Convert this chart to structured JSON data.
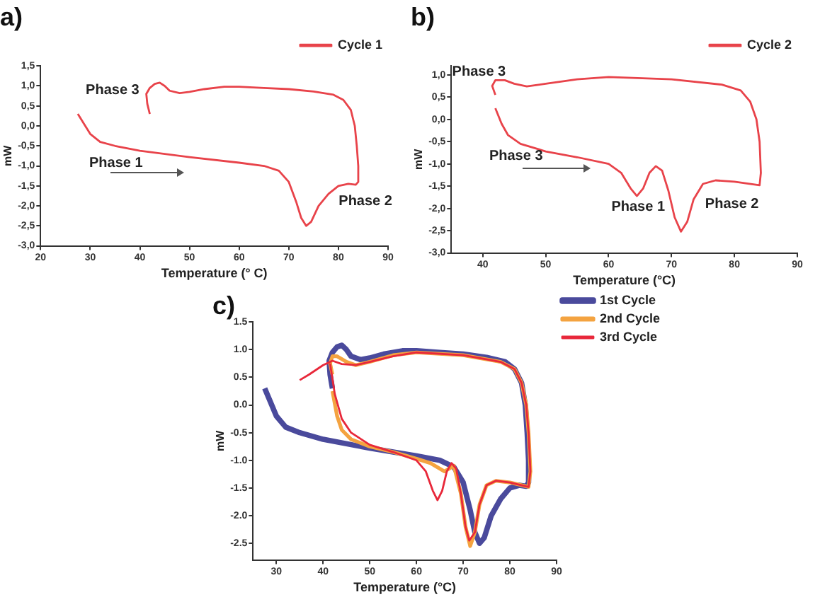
{
  "chart_data": [
    {
      "type": "line",
      "title": "a)",
      "xlabel": "Temperature (° C)",
      "ylabel": "mW",
      "xlim": [
        20,
        90
      ],
      "xticks": [
        20,
        30,
        40,
        50,
        60,
        70,
        80,
        90
      ],
      "ylim": [
        -3,
        1.5
      ],
      "yticks": [
        {
          "value": 1.5,
          "label": "1,5"
        },
        {
          "value": 1,
          "label": "1,0"
        },
        {
          "value": 0.5,
          "label": "0,5"
        },
        {
          "value": 0,
          "label": "0,0"
        },
        {
          "value": -0.5,
          "label": "-0,5"
        },
        {
          "value": -1,
          "label": "-1,0"
        },
        {
          "value": -1.5,
          "label": "-1,5"
        },
        {
          "value": -2,
          "label": "-2,0"
        },
        {
          "value": -2.5,
          "label": "-2,5"
        },
        {
          "value": -3,
          "label": "-3,0"
        }
      ],
      "grid": false,
      "legend": "top right",
      "marker": "none",
      "line_style": "solid",
      "annotations": [
        "Phase 3",
        "Phase 1",
        "Phase 2"
      ],
      "series": [
        {
          "name": "Cycle 1",
          "color": "#e8434a",
          "x": [
            27.5,
            29,
            30,
            32,
            35,
            40,
            50,
            60,
            65,
            68,
            70,
            71.5,
            72.5,
            73.5,
            74.5,
            76,
            78,
            80,
            82,
            83.5,
            84,
            84,
            83.7,
            83.3,
            82.5,
            81,
            79,
            75,
            70,
            65,
            60,
            57,
            53,
            50,
            48,
            46,
            45,
            44,
            43,
            42,
            41.3,
            41.5,
            42
          ],
          "values": [
            0.3,
            0,
            -0.2,
            -0.4,
            -0.5,
            -0.62,
            -0.78,
            -0.92,
            -1,
            -1.12,
            -1.4,
            -1.9,
            -2.3,
            -2.5,
            -2.4,
            -2,
            -1.7,
            -1.5,
            -1.45,
            -1.47,
            -1.4,
            -1,
            -0.5,
            0,
            0.4,
            0.65,
            0.78,
            0.86,
            0.92,
            0.95,
            0.98,
            0.98,
            0.92,
            0.85,
            0.82,
            0.88,
            1,
            1.08,
            1.05,
            0.95,
            0.8,
            0.55,
            0.3
          ]
        }
      ]
    },
    {
      "type": "line",
      "title": "b)",
      "xlabel": "Temperature (°C)",
      "ylabel": "mW",
      "xlim": [
        35,
        90
      ],
      "xticks": [
        40,
        50,
        60,
        70,
        80,
        90
      ],
      "ylim": [
        -3,
        1.2
      ],
      "yticks": [
        {
          "value": 1,
          "label": "1,0"
        },
        {
          "value": 0.5,
          "label": "0,5"
        },
        {
          "value": 0,
          "label": "0,0"
        },
        {
          "value": -0.5,
          "label": "-0,5"
        },
        {
          "value": -1,
          "label": "-1,0"
        },
        {
          "value": -1.5,
          "label": "-1,5"
        },
        {
          "value": -2,
          "label": "-2,0"
        },
        {
          "value": -2.5,
          "label": "-2,5"
        },
        {
          "value": -3,
          "label": "-3,0"
        }
      ],
      "grid": false,
      "legend": "top right",
      "marker": "none",
      "line_style": "solid",
      "annotations": [
        "Phase 3",
        "Phase 3",
        "Phase 1",
        "Phase 2"
      ],
      "series": [
        {
          "name": "Cycle 2",
          "color": "#e8434a",
          "x": [
            42,
            43,
            44,
            46,
            50,
            55,
            60,
            62,
            63.5,
            64.5,
            65.5,
            66.5,
            67.5,
            68.5,
            69.5,
            70.5,
            71.5,
            72.5,
            73.5,
            75,
            77,
            80,
            84,
            84.2,
            84,
            83.5,
            82.5,
            81,
            78,
            70,
            60,
            55,
            50,
            47,
            45,
            43.5,
            42,
            41.5,
            42
          ],
          "values": [
            0.25,
            -0.1,
            -0.35,
            -0.55,
            -0.72,
            -0.85,
            -1,
            -1.2,
            -1.55,
            -1.72,
            -1.55,
            -1.2,
            -1.05,
            -1.15,
            -1.6,
            -2.2,
            -2.52,
            -2.3,
            -1.8,
            -1.45,
            -1.37,
            -1.4,
            -1.48,
            -1.2,
            -0.5,
            0,
            0.4,
            0.65,
            0.78,
            0.9,
            0.95,
            0.9,
            0.8,
            0.74,
            0.8,
            0.88,
            0.88,
            0.75,
            0.55
          ]
        }
      ]
    },
    {
      "type": "line",
      "title": "c)",
      "xlabel": "Temperature (°C)",
      "ylabel": "mW",
      "xlim": [
        25,
        90
      ],
      "xticks": [
        30,
        40,
        50,
        60,
        70,
        80,
        90
      ],
      "ylim": [
        -2.8,
        1.5
      ],
      "yticks": [
        {
          "value": 1.5,
          "label": "1.5"
        },
        {
          "value": 1,
          "label": "1.0"
        },
        {
          "value": 0.5,
          "label": "0.5"
        },
        {
          "value": 0,
          "label": "0.0"
        },
        {
          "value": -0.5,
          "label": "-0.5"
        },
        {
          "value": -1,
          "label": "-1.0"
        },
        {
          "value": -1.5,
          "label": "-1.5"
        },
        {
          "value": -2,
          "label": "-2.0"
        },
        {
          "value": -2.5,
          "label": "-2.5"
        }
      ],
      "grid": false,
      "legend": "right",
      "marker": "none",
      "line_style": "solid",
      "series": [
        {
          "name": "1st Cycle",
          "color": "#4a4a9c",
          "x": [
            27.5,
            29,
            30,
            32,
            35,
            40,
            50,
            60,
            65,
            68,
            70,
            71.5,
            72.5,
            73.5,
            74.5,
            76,
            78,
            80,
            82,
            83.5,
            84,
            84,
            83.7,
            83.3,
            82.5,
            81,
            79,
            75,
            70,
            65,
            60,
            57,
            53,
            50,
            48,
            46,
            45,
            44,
            43,
            42,
            41.3,
            41.5,
            42
          ],
          "values": [
            0.3,
            0,
            -0.2,
            -0.4,
            -0.5,
            -0.62,
            -0.78,
            -0.92,
            -1,
            -1.12,
            -1.4,
            -1.9,
            -2.3,
            -2.5,
            -2.4,
            -2,
            -1.7,
            -1.5,
            -1.45,
            -1.47,
            -1.4,
            -1,
            -0.5,
            0,
            0.4,
            0.65,
            0.78,
            0.86,
            0.92,
            0.95,
            0.98,
            0.98,
            0.92,
            0.85,
            0.82,
            0.88,
            1,
            1.08,
            1.05,
            0.95,
            0.8,
            0.55,
            0.3
          ]
        },
        {
          "name": "2nd Cycle",
          "color": "#f4a340",
          "x": [
            42,
            43,
            44,
            46,
            50,
            55,
            60,
            63,
            66,
            68,
            69.5,
            70.5,
            71.5,
            72.5,
            73.5,
            75,
            77,
            80,
            84,
            84.4,
            84,
            83.5,
            82.5,
            81,
            78,
            70,
            60,
            55,
            50,
            47,
            45,
            43,
            42,
            41.5,
            42
          ],
          "values": [
            0.25,
            -0.2,
            -0.45,
            -0.62,
            -0.75,
            -0.85,
            -0.97,
            -1.05,
            -1.2,
            -1.1,
            -1.6,
            -2.2,
            -2.55,
            -2.3,
            -1.8,
            -1.45,
            -1.37,
            -1.4,
            -1.48,
            -1.2,
            -0.5,
            0,
            0.4,
            0.65,
            0.78,
            0.9,
            0.95,
            0.9,
            0.78,
            0.72,
            0.78,
            0.88,
            0.88,
            0.75,
            0.55
          ]
        },
        {
          "name": "3rd Cycle",
          "color": "#e8283a",
          "x": [
            41.5,
            42.5,
            44,
            46,
            50,
            55,
            60,
            62,
            63.5,
            64.5,
            65.5,
            66.5,
            67.5,
            68.5,
            69.5,
            70.5,
            71.3,
            72.5,
            73.5,
            75,
            77,
            80,
            84,
            84.4,
            84,
            83.5,
            82.5,
            81,
            78,
            70,
            60,
            55,
            50,
            47,
            44,
            42,
            40,
            37,
            35
          ],
          "values": [
            0.75,
            0.2,
            -0.25,
            -0.5,
            -0.72,
            -0.85,
            -1,
            -1.2,
            -1.55,
            -1.72,
            -1.55,
            -1.2,
            -1.05,
            -1.15,
            -1.6,
            -2.2,
            -2.45,
            -2.3,
            -1.8,
            -1.45,
            -1.37,
            -1.4,
            -1.48,
            -1.2,
            -0.5,
            0,
            0.4,
            0.65,
            0.78,
            0.9,
            0.95,
            0.88,
            0.78,
            0.72,
            0.74,
            0.8,
            0.72,
            0.55,
            0.45
          ]
        }
      ]
    }
  ]
}
